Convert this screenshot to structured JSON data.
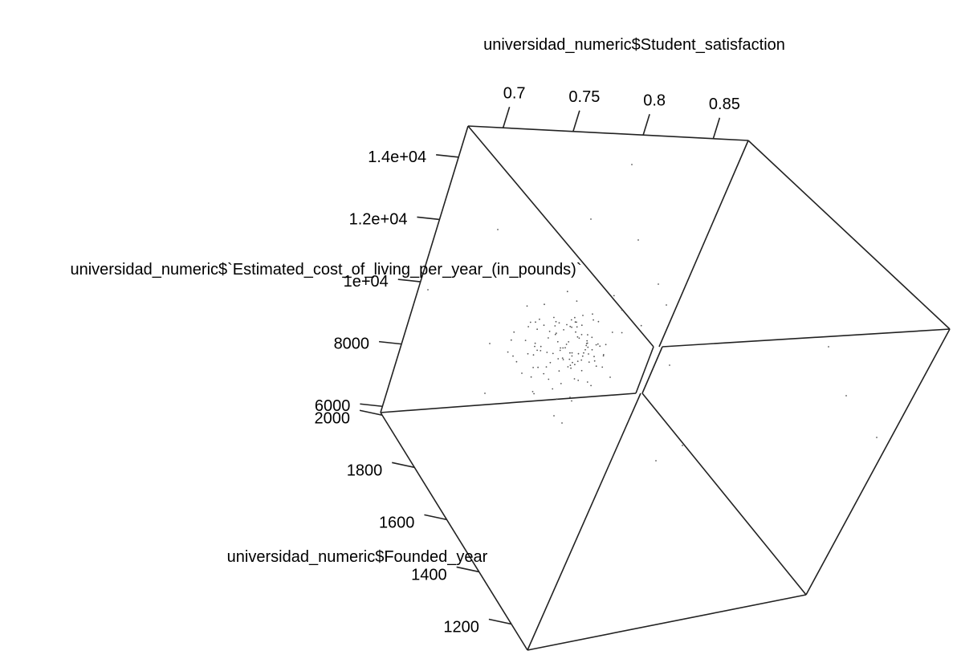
{
  "chart_data": {
    "type": "scatter3d",
    "title": "",
    "axes": {
      "x": {
        "label": "universidad_numeric$Student_satisfaction",
        "ticks": [
          0.7,
          0.75,
          0.8,
          0.85
        ],
        "tick_labels": [
          "0.7",
          "0.75",
          "0.8",
          "0.85"
        ],
        "range": [
          0.675,
          0.875
        ]
      },
      "y": {
        "label": "universidad_numeric$`Estimated_cost_of_living_per_year_(in_pounds)`",
        "ticks": [
          6000,
          8000,
          10000,
          12000,
          14000
        ],
        "tick_labels": [
          "6000",
          "8000",
          "1e+04",
          "1.2e+04",
          "1.4e+04"
        ],
        "range": [
          5800,
          15000
        ]
      },
      "z": {
        "label": "universidad_numeric$Founded_year",
        "ticks": [
          1200,
          1400,
          1600,
          1800,
          2000
        ],
        "tick_labels": [
          "1200",
          "1400",
          "1600",
          "1800",
          "2000"
        ],
        "range": [
          1100,
          2010
        ]
      }
    },
    "point_style": "small-gray-dots",
    "note": "Point cloud centered near satisfaction 0.76, cost 9000, founded year ~1900; approximately 150 points"
  }
}
